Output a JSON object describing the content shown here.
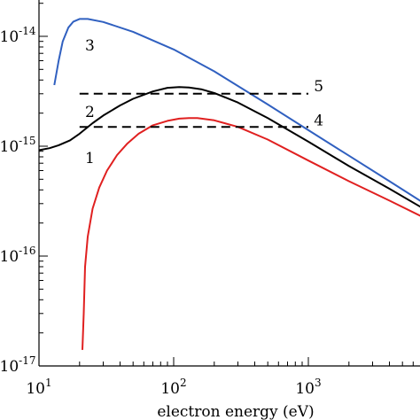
{
  "chart_data": {
    "type": "line",
    "title": "",
    "xlabel": "electron energy (eV)",
    "ylabel": "",
    "x_scale": "log",
    "y_scale": "log",
    "xlim": [
      10,
      8000
    ],
    "ylim": [
      1e-17,
      3e-14
    ],
    "x_ticks": [
      {
        "value": 10,
        "base": "10",
        "exp": "1"
      },
      {
        "value": 100,
        "base": "10",
        "exp": "2"
      },
      {
        "value": 1000,
        "base": "10",
        "exp": "3"
      }
    ],
    "y_ticks": [
      {
        "value": 1e-17,
        "base": "10",
        "exp": "-17"
      },
      {
        "value": 1e-16,
        "base": "10",
        "exp": "-16"
      },
      {
        "value": 1e-15,
        "base": "10",
        "exp": "-15"
      },
      {
        "value": 1e-14,
        "base": "10",
        "exp": "-14"
      }
    ],
    "grid": false,
    "legend": "none",
    "series": [
      {
        "id": "1",
        "label": "1",
        "color": "#e02020",
        "dash": "solid",
        "label_at": [
          22,
          7e-16
        ],
        "points": [
          [
            21,
            1.4e-17
          ],
          [
            21.5,
            3e-17
          ],
          [
            22,
            8e-17
          ],
          [
            23,
            1.5e-16
          ],
          [
            25,
            2.7e-16
          ],
          [
            28,
            4.2e-16
          ],
          [
            32,
            6e-16
          ],
          [
            38,
            8.3e-16
          ],
          [
            45,
            1.05e-15
          ],
          [
            55,
            1.3e-15
          ],
          [
            70,
            1.55e-15
          ],
          [
            90,
            1.7e-15
          ],
          [
            110,
            1.78e-15
          ],
          [
            130,
            1.8e-15
          ],
          [
            150,
            1.8e-15
          ],
          [
            200,
            1.72e-15
          ],
          [
            300,
            1.5e-15
          ],
          [
            500,
            1.15e-15
          ],
          [
            1000,
            7.4e-16
          ],
          [
            2000,
            4.8e-16
          ],
          [
            4000,
            3.2e-16
          ],
          [
            8000,
            2.1e-16
          ]
        ]
      },
      {
        "id": "2",
        "label": "2",
        "color": "#000000",
        "dash": "solid",
        "label_at": [
          22,
          1.85e-15
        ],
        "points": [
          [
            10,
            9.2e-16
          ],
          [
            12,
            9.6e-16
          ],
          [
            14,
            1.02e-15
          ],
          [
            17,
            1.13e-15
          ],
          [
            20,
            1.3e-15
          ],
          [
            25,
            1.62e-15
          ],
          [
            30,
            1.9e-15
          ],
          [
            40,
            2.35e-15
          ],
          [
            50,
            2.7e-15
          ],
          [
            70,
            3.15e-15
          ],
          [
            90,
            3.4e-15
          ],
          [
            110,
            3.45e-15
          ],
          [
            130,
            3.42e-15
          ],
          [
            160,
            3.3e-15
          ],
          [
            200,
            3.05e-15
          ],
          [
            300,
            2.5e-15
          ],
          [
            500,
            1.8e-15
          ],
          [
            1000,
            1.1e-15
          ],
          [
            2000,
            6.6e-16
          ],
          [
            4000,
            4.1e-16
          ],
          [
            8000,
            2.5e-16
          ]
        ]
      },
      {
        "id": "3",
        "label": "3",
        "color": "#3060c0",
        "dash": "solid",
        "label_at": [
          22,
          7.4e-15
        ],
        "points": [
          [
            13,
            3.6e-15
          ],
          [
            14,
            6e-15
          ],
          [
            15,
            9e-15
          ],
          [
            16.5,
            1.2e-14
          ],
          [
            18,
            1.36e-14
          ],
          [
            20,
            1.44e-14
          ],
          [
            23,
            1.44e-14
          ],
          [
            30,
            1.35e-14
          ],
          [
            50,
            1.1e-14
          ],
          [
            100,
            7.6e-15
          ],
          [
            200,
            4.8e-15
          ],
          [
            500,
            2.4e-15
          ],
          [
            1000,
            1.4e-15
          ],
          [
            2000,
            8.2e-16
          ],
          [
            4000,
            4.8e-16
          ],
          [
            8000,
            2.8e-16
          ]
        ]
      },
      {
        "id": "4",
        "label": "4",
        "color": "#000000",
        "dash": "dashed",
        "label_at": [
          1100,
          1.55e-15
        ],
        "points": [
          [
            20,
            1.5e-15
          ],
          [
            1000,
            1.5e-15
          ]
        ]
      },
      {
        "id": "5",
        "label": "5",
        "color": "#000000",
        "dash": "dashed",
        "label_at": [
          1100,
          3.15e-15
        ],
        "points": [
          [
            20,
            3e-15
          ],
          [
            1000,
            3e-15
          ]
        ]
      }
    ]
  }
}
